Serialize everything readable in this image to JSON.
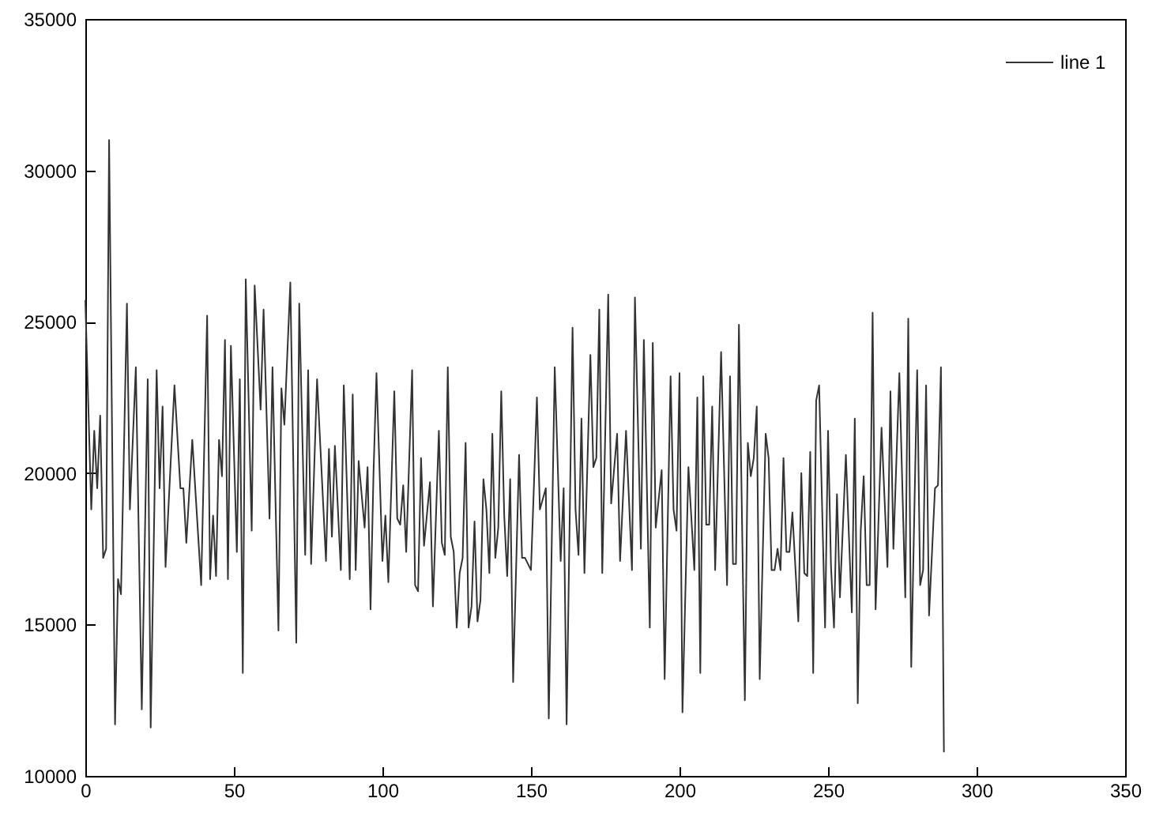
{
  "chart_data": {
    "type": "line",
    "x": [
      0,
      2,
      3,
      4,
      5,
      6,
      7,
      8,
      10,
      11,
      12,
      14,
      15,
      17,
      19,
      21,
      22,
      24,
      25,
      26,
      27,
      30,
      32,
      33,
      34,
      36,
      39,
      41,
      42,
      43,
      44,
      45,
      46,
      47,
      48,
      49,
      51,
      52,
      53,
      54,
      56,
      57,
      59,
      60,
      62,
      63,
      65,
      66,
      67,
      69,
      71,
      72,
      74,
      75,
      76,
      78,
      81,
      82,
      83,
      84,
      86,
      87,
      89,
      90,
      91,
      92,
      94,
      95,
      96,
      97,
      98,
      100,
      101,
      102,
      104,
      105,
      106,
      107,
      108,
      110,
      111,
      112,
      113,
      114,
      116,
      117,
      119,
      120,
      121,
      122,
      123,
      124,
      125,
      126,
      127,
      128,
      129,
      130,
      131,
      132,
      133,
      134,
      135,
      136,
      137,
      138,
      139,
      140,
      141,
      142,
      143,
      144,
      146,
      147,
      148,
      150,
      151,
      152,
      153,
      155,
      156,
      158,
      159,
      160,
      161,
      162,
      164,
      165,
      166,
      167,
      168,
      170,
      171,
      172,
      173,
      174,
      176,
      177,
      179,
      180,
      182,
      184,
      185,
      187,
      188,
      190,
      191,
      192,
      194,
      195,
      197,
      198,
      199,
      200,
      201,
      203,
      204,
      205,
      206,
      207,
      208,
      209,
      210,
      211,
      212,
      214,
      216,
      217,
      218,
      219,
      220,
      222,
      223,
      224,
      225,
      226,
      227,
      229,
      230,
      231,
      232,
      233,
      234,
      235,
      236,
      237,
      238,
      240,
      241,
      242,
      243,
      244,
      245,
      246,
      247,
      249,
      250,
      251,
      252,
      253,
      254,
      256,
      258,
      259,
      260,
      261,
      262,
      263,
      264,
      265,
      266,
      268,
      270,
      271,
      272,
      274,
      276,
      277,
      278,
      280,
      281,
      282,
      283,
      284,
      286,
      287,
      288,
      289
    ],
    "series": [
      {
        "name": "line 1",
        "color": "#333333",
        "values": [
          25700,
          18800,
          21400,
          19500,
          21900,
          17200,
          17500,
          31000,
          11700,
          16500,
          16000,
          25600,
          18800,
          23500,
          12200,
          23100,
          11600,
          23400,
          19500,
          22200,
          16900,
          22900,
          19500,
          19500,
          17700,
          21100,
          16300,
          25200,
          16500,
          18600,
          16600,
          21100,
          19900,
          24400,
          16500,
          24200,
          17400,
          23100,
          13400,
          26400,
          18100,
          26200,
          22100,
          25400,
          18500,
          23500,
          14800,
          22800,
          21600,
          26300,
          14400,
          25600,
          17300,
          23400,
          17000,
          23100,
          17100,
          20800,
          17900,
          20900,
          16800,
          22900,
          16500,
          22600,
          16800,
          20400,
          18200,
          20200,
          15500,
          20000,
          23300,
          17100,
          18600,
          16400,
          22700,
          18500,
          18300,
          19600,
          17400,
          23400,
          16300,
          16100,
          20500,
          17600,
          19700,
          15600,
          21400,
          17700,
          17300,
          23500,
          17900,
          17400,
          14900,
          16700,
          17200,
          21000,
          14900,
          15600,
          18400,
          15100,
          15800,
          19800,
          18800,
          16700,
          21300,
          17200,
          18200,
          22700,
          18600,
          16600,
          19800,
          13100,
          20600,
          17200,
          17200,
          16800,
          19600,
          22500,
          18800,
          19500,
          11900,
          23500,
          20300,
          17100,
          19500,
          11700,
          24800,
          18800,
          17300,
          21800,
          16700,
          23900,
          20200,
          20500,
          25400,
          16700,
          25900,
          19000,
          21300,
          17100,
          21400,
          16800,
          25800,
          17500,
          24400,
          14900,
          24300,
          18200,
          20100,
          13200,
          23200,
          18800,
          18100,
          23300,
          12100,
          20200,
          18500,
          16800,
          22500,
          13400,
          23200,
          18300,
          18300,
          22200,
          16800,
          24000,
          16300,
          23200,
          17000,
          17000,
          24900,
          12500,
          21000,
          19900,
          20500,
          22200,
          13200,
          21300,
          20500,
          16800,
          16800,
          17500,
          16800,
          20500,
          17400,
          17400,
          18700,
          15100,
          20000,
          16700,
          16600,
          20700,
          13400,
          22400,
          22900,
          14900,
          21400,
          16900,
          14900,
          19300,
          15900,
          20600,
          15400,
          21800,
          12400,
          18100,
          19900,
          16300,
          16300,
          25300,
          15500,
          21500,
          16900,
          22700,
          17500,
          23300,
          15900,
          25100,
          13600,
          23400,
          16300,
          16800,
          22900,
          15300,
          19500,
          19600,
          23500,
          10800
        ]
      }
    ],
    "xlim": [
      0,
      350
    ],
    "xticks": [
      0,
      50,
      100,
      150,
      200,
      250,
      300,
      350
    ],
    "ylim": [
      10000,
      35000
    ],
    "yticks": [
      10000,
      15000,
      20000,
      25000,
      30000,
      35000
    ],
    "grid": false,
    "legend": "top right",
    "marker": "none",
    "line_style": "solid"
  }
}
